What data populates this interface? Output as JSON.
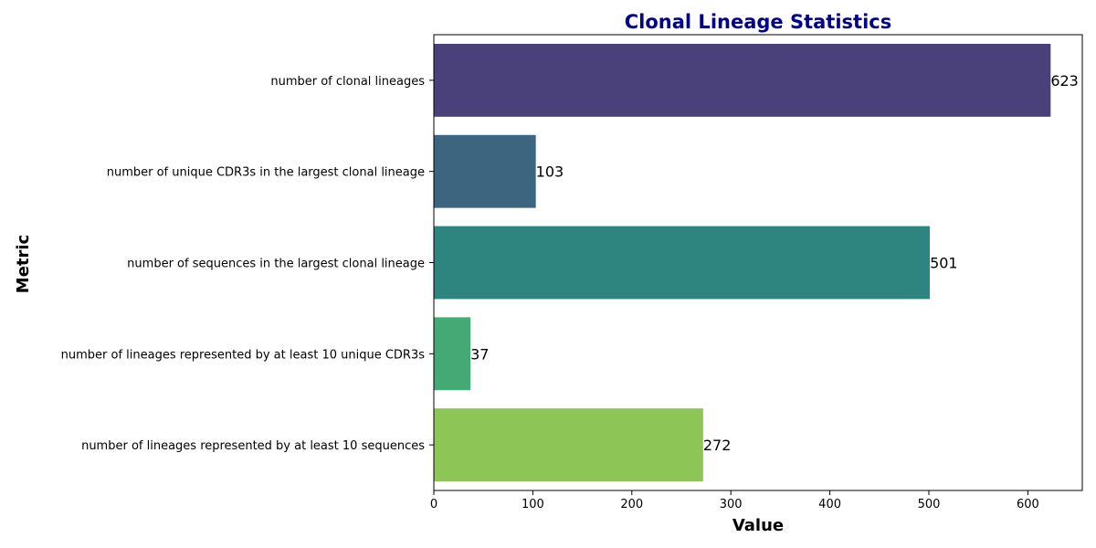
{
  "chart_data": {
    "type": "bar",
    "orientation": "horizontal",
    "title": "Clonal Lineage Statistics",
    "xlabel": "Value",
    "ylabel": "Metric",
    "categories": [
      "number of clonal lineages",
      "number of unique CDR3s in the largest clonal lineage",
      "number of sequences in the largest clonal lineage",
      "number of lineages represented by at least 10 unique CDR3s",
      "number of lineages represented by at least 10 sequences"
    ],
    "values": [
      623,
      103,
      501,
      37,
      272
    ],
    "data_labels": [
      "623",
      "103",
      "501",
      "37",
      "272"
    ],
    "colors": [
      "#4a417a",
      "#3d6580",
      "#2e8580",
      "#45a975",
      "#8dc556"
    ],
    "xlim": [
      0,
      655
    ],
    "xticks": [
      0,
      100,
      200,
      300,
      400,
      500,
      600
    ],
    "grid": false,
    "legend": "none",
    "title_color": "#00008b"
  }
}
